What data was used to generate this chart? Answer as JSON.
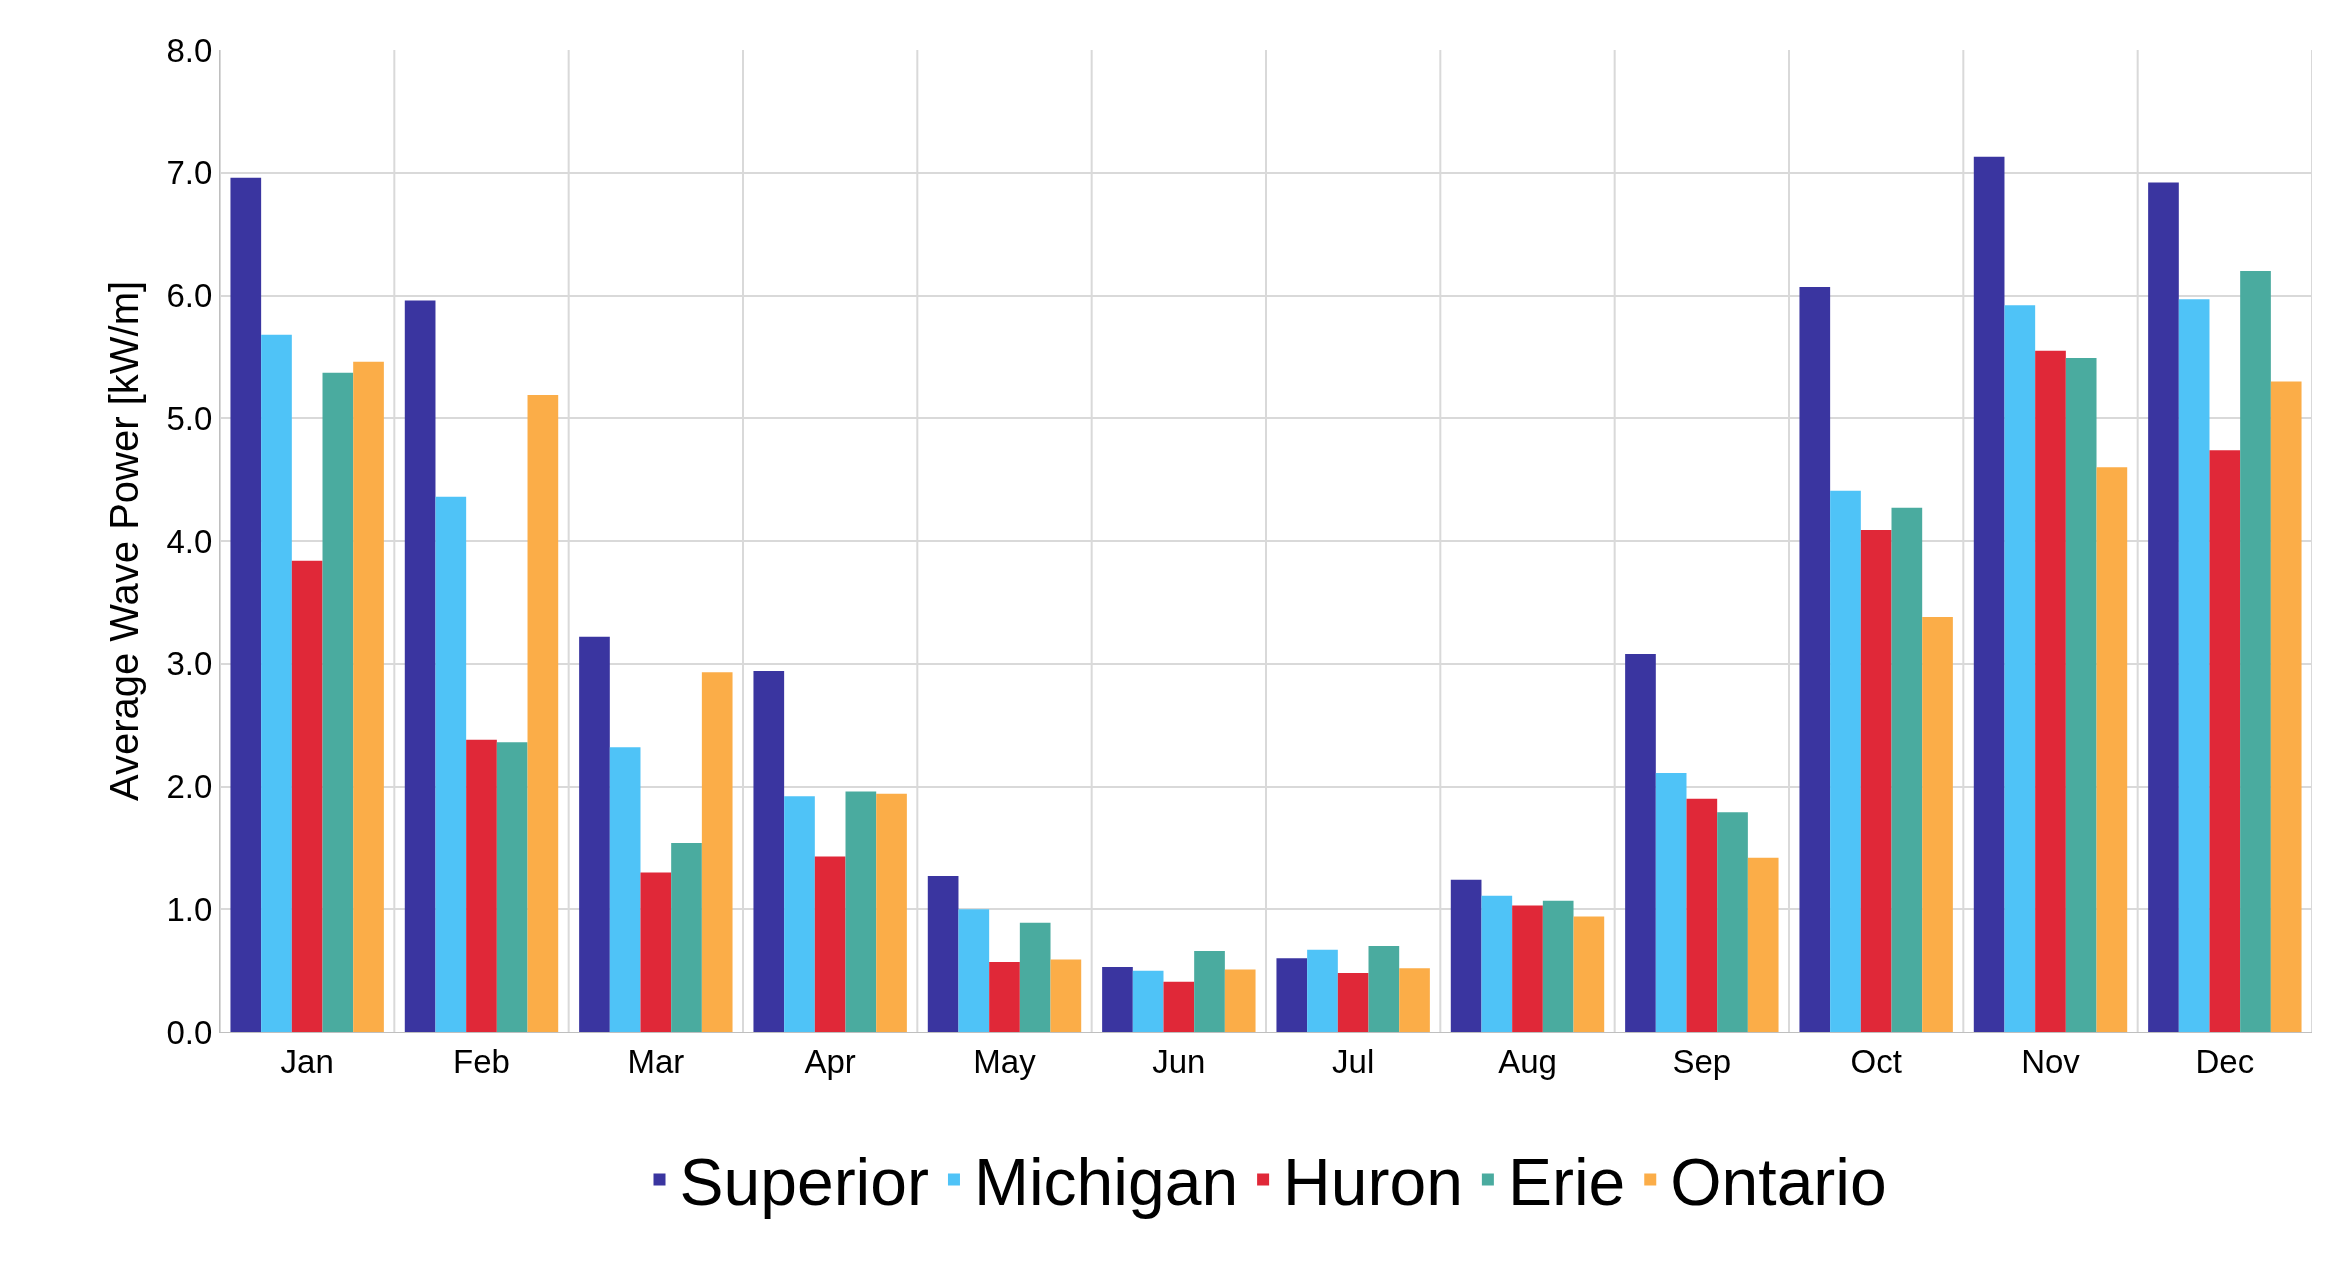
{
  "chart_data": {
    "type": "bar",
    "ylabel": "Average Wave Power [kW/m]",
    "categories": [
      "Jan",
      "Feb",
      "Mar",
      "Apr",
      "May",
      "Jun",
      "Jul",
      "Aug",
      "Sep",
      "Oct",
      "Nov",
      "Dec"
    ],
    "series": [
      {
        "name": "Superior",
        "color": "#3a35a0",
        "values": [
          6.96,
          5.96,
          3.22,
          2.94,
          1.27,
          0.53,
          0.6,
          1.24,
          3.08,
          6.07,
          7.13,
          6.92
        ]
      },
      {
        "name": "Michigan",
        "color": "#4fc3f7",
        "values": [
          5.68,
          4.36,
          2.32,
          1.92,
          1.0,
          0.5,
          0.67,
          1.11,
          2.11,
          4.41,
          5.92,
          5.97
        ]
      },
      {
        "name": "Huron",
        "color": "#e02838",
        "values": [
          3.84,
          2.38,
          1.3,
          1.43,
          0.57,
          0.41,
          0.48,
          1.03,
          1.9,
          4.09,
          5.55,
          4.74
        ]
      },
      {
        "name": "Erie",
        "color": "#4aab9f",
        "values": [
          5.37,
          2.36,
          1.54,
          1.96,
          0.89,
          0.66,
          0.7,
          1.07,
          1.79,
          4.27,
          5.49,
          6.2
        ]
      },
      {
        "name": "Ontario",
        "color": "#fbad48",
        "values": [
          5.46,
          5.19,
          2.93,
          1.94,
          0.59,
          0.51,
          0.52,
          0.94,
          1.42,
          3.38,
          4.6,
          5.3
        ]
      }
    ],
    "ylim": [
      0,
      8
    ],
    "yticks": [
      {
        "value": 0,
        "label": "0.0"
      },
      {
        "value": 1,
        "label": "1.0"
      },
      {
        "value": 2,
        "label": "2.0"
      },
      {
        "value": 3,
        "label": "3.0"
      },
      {
        "value": 4,
        "label": "4.0"
      },
      {
        "value": 5,
        "label": "5.0"
      },
      {
        "value": 6,
        "label": "6.0"
      },
      {
        "value": 7,
        "label": "7.0"
      },
      {
        "value": 8,
        "label": "8.0"
      }
    ],
    "grid": true,
    "legend": "bottom"
  }
}
